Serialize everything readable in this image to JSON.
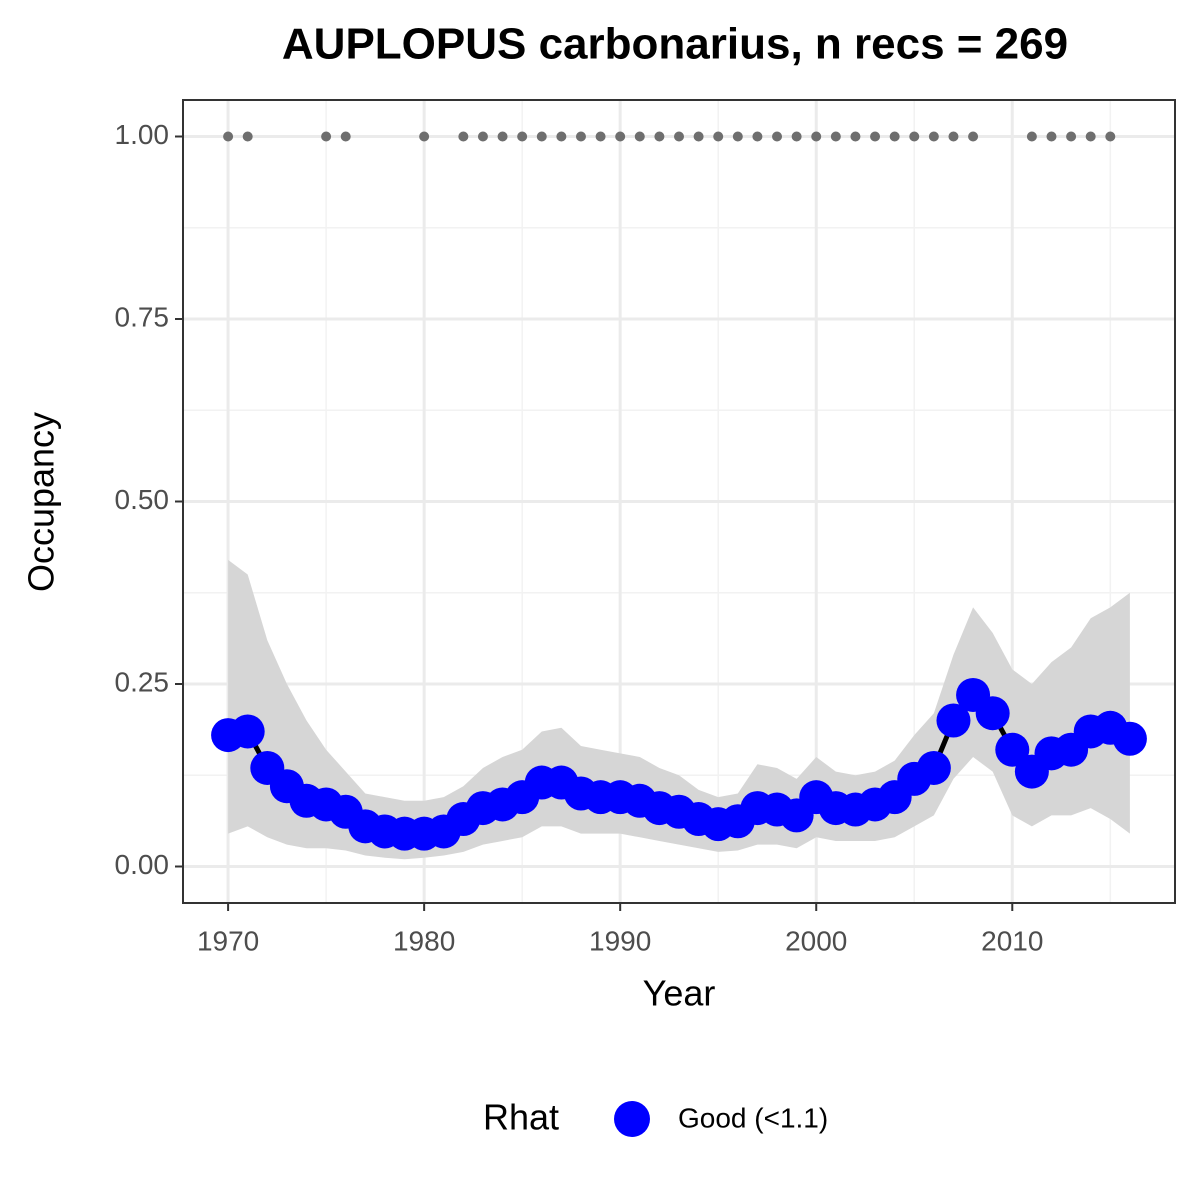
{
  "chart_data": {
    "type": "line",
    "title": "AUPLOPUS carbonarius, n recs = 269",
    "x_label": "Year",
    "y_label": "Occupancy",
    "legend_title": "Rhat",
    "x": [
      1970,
      1971,
      1972,
      1973,
      1974,
      1975,
      1976,
      1977,
      1978,
      1979,
      1980,
      1981,
      1982,
      1983,
      1984,
      1985,
      1986,
      1987,
      1988,
      1989,
      1990,
      1991,
      1992,
      1993,
      1994,
      1995,
      1996,
      1997,
      1998,
      1999,
      2000,
      2001,
      2002,
      2003,
      2004,
      2005,
      2006,
      2007,
      2008,
      2009,
      2010,
      2011,
      2012,
      2013,
      2014,
      2015,
      2016
    ],
    "series": [
      {
        "name": "Good (<1.1)",
        "color": "#0000ff",
        "line_color": "#000000",
        "values": [
          0.18,
          0.185,
          0.135,
          0.11,
          0.09,
          0.085,
          0.075,
          0.055,
          0.048,
          0.045,
          0.045,
          0.048,
          0.065,
          0.08,
          0.085,
          0.095,
          0.115,
          0.115,
          0.1,
          0.095,
          0.095,
          0.09,
          0.08,
          0.075,
          0.065,
          0.058,
          0.062,
          0.08,
          0.078,
          0.07,
          0.095,
          0.08,
          0.078,
          0.085,
          0.095,
          0.12,
          0.135,
          0.2,
          0.235,
          0.21,
          0.16,
          0.13,
          0.155,
          0.16,
          0.185,
          0.19,
          0.175
        ],
        "lower": [
          0.045,
          0.055,
          0.04,
          0.03,
          0.025,
          0.025,
          0.022,
          0.015,
          0.012,
          0.01,
          0.012,
          0.015,
          0.02,
          0.03,
          0.035,
          0.04,
          0.055,
          0.055,
          0.045,
          0.045,
          0.045,
          0.04,
          0.035,
          0.03,
          0.025,
          0.02,
          0.022,
          0.03,
          0.03,
          0.025,
          0.04,
          0.035,
          0.035,
          0.035,
          0.04,
          0.055,
          0.07,
          0.12,
          0.15,
          0.13,
          0.07,
          0.055,
          0.07,
          0.07,
          0.08,
          0.065,
          0.045
        ],
        "upper": [
          0.42,
          0.4,
          0.31,
          0.25,
          0.2,
          0.16,
          0.13,
          0.1,
          0.095,
          0.09,
          0.09,
          0.095,
          0.11,
          0.135,
          0.15,
          0.16,
          0.185,
          0.19,
          0.165,
          0.16,
          0.155,
          0.15,
          0.135,
          0.125,
          0.105,
          0.095,
          0.1,
          0.14,
          0.135,
          0.12,
          0.15,
          0.13,
          0.125,
          0.13,
          0.145,
          0.18,
          0.21,
          0.29,
          0.355,
          0.32,
          0.27,
          0.25,
          0.28,
          0.3,
          0.34,
          0.355,
          0.375
        ],
        "band_color": "#d6d6d6"
      }
    ],
    "records": {
      "color": "#6e6e6e",
      "x": [
        1970,
        1971,
        1975,
        1976,
        1980,
        1982,
        1983,
        1984,
        1985,
        1986,
        1987,
        1988,
        1989,
        1990,
        1991,
        1992,
        1993,
        1994,
        1995,
        1996,
        1997,
        1998,
        1999,
        2000,
        2001,
        2002,
        2003,
        2004,
        2005,
        2006,
        2007,
        2008,
        2011,
        2012,
        2013,
        2014,
        2015
      ],
      "values": [
        1,
        1,
        1,
        1,
        1,
        1,
        1,
        1,
        1,
        1,
        1,
        1,
        1,
        1,
        1,
        1,
        1,
        1,
        1,
        1,
        1,
        1,
        1,
        1,
        1,
        1,
        1,
        1,
        1,
        1,
        1,
        1,
        1,
        1,
        1,
        1,
        1
      ]
    },
    "xlim": [
      1967.7,
      2018.3
    ],
    "ylim": [
      -0.05,
      1.05
    ],
    "xticks": [
      1970,
      1980,
      1990,
      2000,
      2010
    ],
    "yticks": [
      {
        "value": 0,
        "label": "0.00"
      },
      {
        "value": 0.25,
        "label": "0.25"
      },
      {
        "value": 0.5,
        "label": "0.50"
      },
      {
        "value": 0.75,
        "label": "0.75"
      },
      {
        "value": 1,
        "label": "1.00"
      }
    ],
    "grid": true,
    "legend_position": "bottom"
  }
}
